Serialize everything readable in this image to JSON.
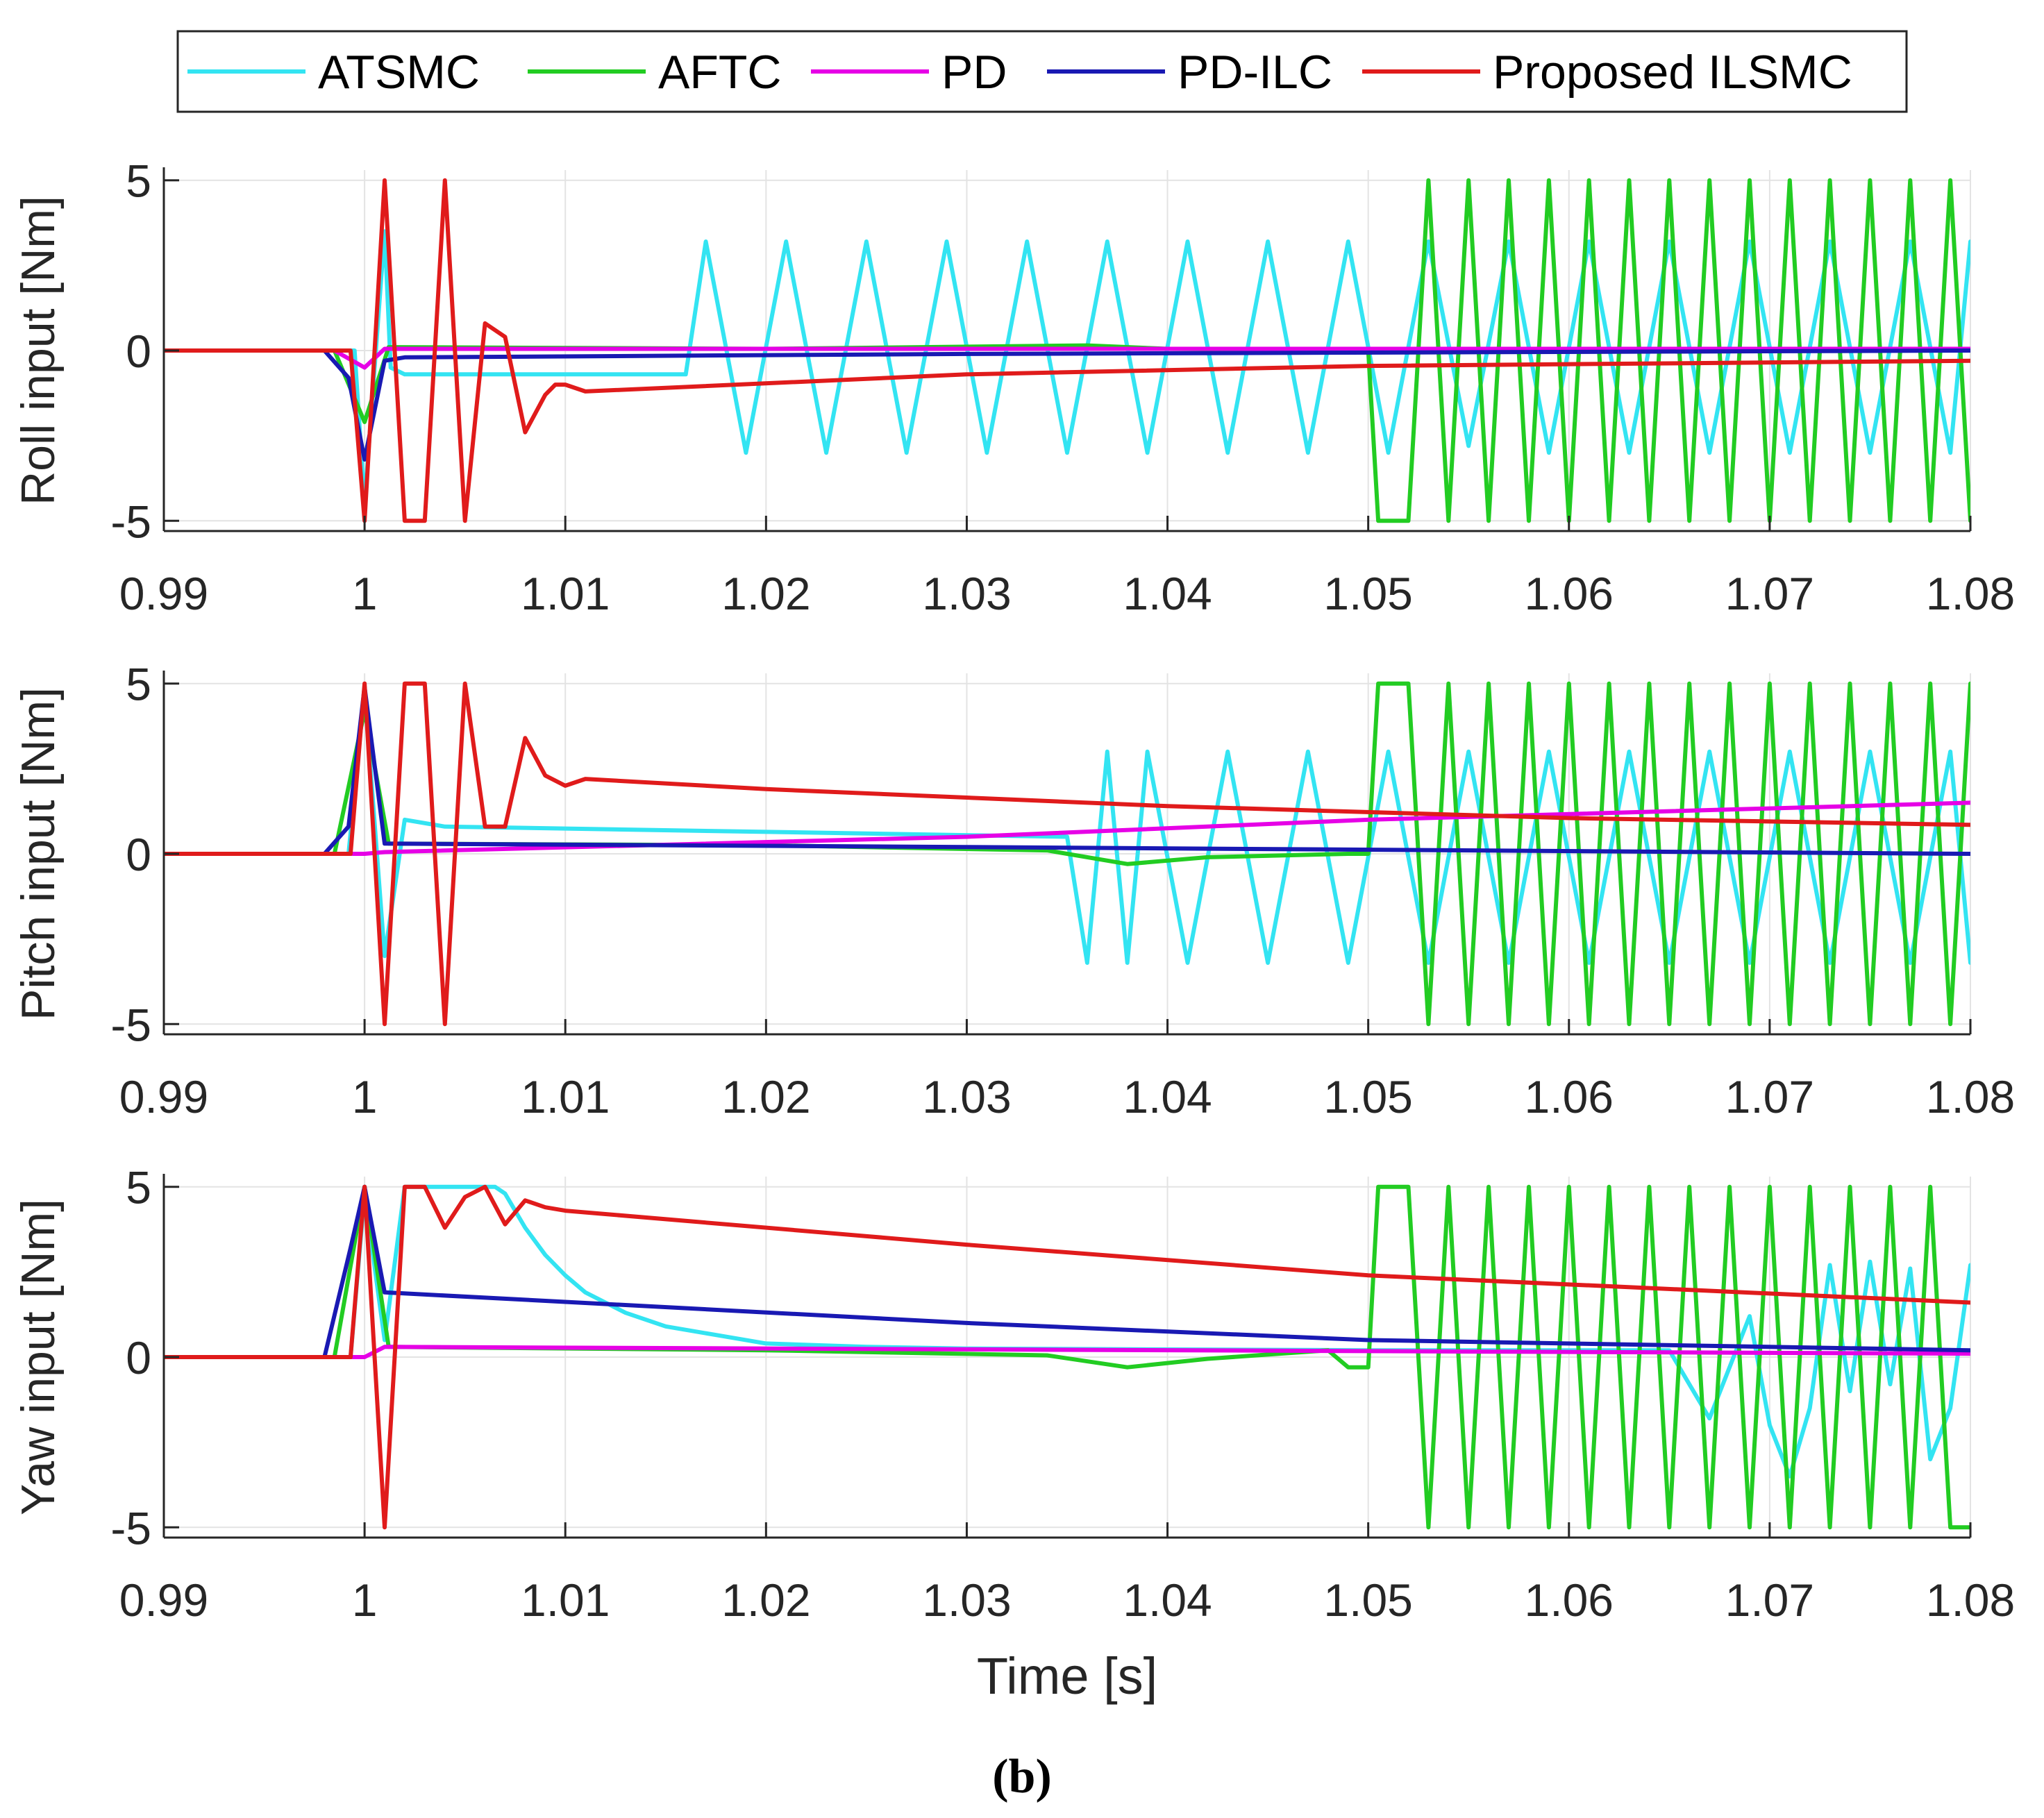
{
  "caption": "(b)",
  "legend": [
    {
      "name": "ATSMC",
      "color": "#33e4f2"
    },
    {
      "name": "AFTC",
      "color": "#22cc22"
    },
    {
      "name": "PD",
      "color": "#e600e6"
    },
    {
      "name": "PD-ILC",
      "color": "#1919b3"
    },
    {
      "name": "Proposed ILSMC",
      "color": "#e01b1b"
    }
  ],
  "chart_data": [
    {
      "type": "line",
      "title": "",
      "xlabel": "",
      "ylabel": "Roll input [Nm]",
      "xlim": [
        0.99,
        1.08
      ],
      "ylim": [
        -5.3,
        5.3
      ],
      "xticks": [
        0.99,
        1,
        1.01,
        1.02,
        1.03,
        1.04,
        1.05,
        1.06,
        1.07,
        1.08
      ],
      "xtick_labels": [
        "0.99",
        "1",
        "1.01",
        "1.02",
        "1.03",
        "1.04",
        "1.05",
        "1.06",
        "1.07",
        "1.08"
      ],
      "yticks": [
        5,
        0,
        -5
      ],
      "ytick_labels": [
        "5",
        "0",
        "-5"
      ],
      "grid": true,
      "series": [
        {
          "name": "ATSMC",
          "x": [
            0.99,
            0.9995,
            1.0,
            1.001,
            1.0013,
            1.002,
            1.016,
            1.017,
            1.019,
            1.021,
            1.023,
            1.025,
            1.027,
            1.029,
            1.031,
            1.033,
            1.035,
            1.037,
            1.039,
            1.041,
            1.043,
            1.045,
            1.047,
            1.049,
            1.051,
            1.053,
            1.055,
            1.057,
            1.059,
            1.061,
            1.063,
            1.065,
            1.067,
            1.069,
            1.071,
            1.073,
            1.075,
            1.077,
            1.079,
            1.08
          ],
          "y": [
            0,
            0,
            -4.5,
            3.5,
            -0.5,
            -0.7,
            -0.7,
            3.2,
            -3.0,
            3.2,
            -3.0,
            3.2,
            -3.0,
            3.2,
            -3.0,
            3.2,
            -3.0,
            3.2,
            -3.0,
            3.2,
            -3.0,
            3.2,
            -3.0,
            3.2,
            -3.0,
            3.2,
            -2.8,
            3.2,
            -3.0,
            3.2,
            -3.0,
            3.2,
            -3.0,
            3.2,
            -3.0,
            3.2,
            -3.0,
            3.2,
            -3.0,
            3.2
          ]
        },
        {
          "name": "AFTC",
          "x": [
            0.99,
            0.9985,
            1.0,
            1.0012,
            1.02,
            1.036,
            1.04,
            1.05,
            1.0505,
            1.052,
            1.053,
            1.054,
            1.055,
            1.056,
            1.057,
            1.058,
            1.059,
            1.06,
            1.061,
            1.062,
            1.063,
            1.064,
            1.065,
            1.066,
            1.067,
            1.068,
            1.069,
            1.07,
            1.071,
            1.072,
            1.073,
            1.074,
            1.075,
            1.076,
            1.077,
            1.078,
            1.079,
            1.08
          ],
          "y": [
            0,
            0,
            -2.1,
            0.1,
            0.05,
            0.15,
            0.05,
            0,
            -5,
            -5,
            5,
            -5,
            5,
            -5,
            5,
            -5,
            5,
            -5,
            5,
            -5,
            5,
            -5,
            5,
            -5,
            5,
            -5,
            5,
            -5,
            5,
            -5,
            5,
            -5,
            5,
            -5,
            5,
            -5,
            5,
            -5
          ]
        },
        {
          "name": "PD",
          "x": [
            0.99,
            0.9985,
            1.0,
            1.001,
            1.08
          ],
          "y": [
            0,
            0,
            -0.5,
            0.05,
            0.05
          ]
        },
        {
          "name": "PD-ILC",
          "x": [
            0.99,
            0.998,
            0.9992,
            1.0,
            1.001,
            1.002,
            1.03,
            1.08
          ],
          "y": [
            0,
            0,
            -0.8,
            -3.2,
            -0.3,
            -0.2,
            -0.1,
            0
          ]
        },
        {
          "name": "Proposed ILSMC",
          "x": [
            0.99,
            0.9993,
            1.0,
            1.001,
            1.002,
            1.003,
            1.004,
            1.005,
            1.006,
            1.007,
            1.008,
            1.009,
            1.0095,
            1.01,
            1.011,
            1.03,
            1.05,
            1.08
          ],
          "y": [
            0,
            0,
            -5,
            5,
            -5,
            -5,
            5,
            -5,
            0.8,
            0.4,
            -2.4,
            -1.3,
            -1.0,
            -1.0,
            -1.2,
            -0.7,
            -0.45,
            -0.3
          ]
        }
      ]
    },
    {
      "type": "line",
      "title": "",
      "xlabel": "",
      "ylabel": "Pitch input [Nm]",
      "xlim": [
        0.99,
        1.08
      ],
      "ylim": [
        -5.3,
        5.3
      ],
      "xticks": [
        0.99,
        1,
        1.01,
        1.02,
        1.03,
        1.04,
        1.05,
        1.06,
        1.07,
        1.08
      ],
      "xtick_labels": [
        "0.99",
        "1",
        "1.01",
        "1.02",
        "1.03",
        "1.04",
        "1.05",
        "1.06",
        "1.07",
        "1.08"
      ],
      "yticks": [
        5,
        0,
        -5
      ],
      "ytick_labels": [
        "5",
        "0",
        "-5"
      ],
      "grid": true,
      "series": [
        {
          "name": "ATSMC",
          "x": [
            0.99,
            0.9992,
            1.0,
            1.001,
            1.002,
            1.004,
            1.035,
            1.036,
            1.037,
            1.038,
            1.039,
            1.041,
            1.043,
            1.045,
            1.047,
            1.049,
            1.051,
            1.053,
            1.055,
            1.057,
            1.059,
            1.061,
            1.063,
            1.065,
            1.067,
            1.069,
            1.071,
            1.073,
            1.075,
            1.077,
            1.079,
            1.08
          ],
          "y": [
            0,
            0,
            4.8,
            -3.0,
            1.0,
            0.8,
            0.5,
            -3.2,
            3.0,
            -3.2,
            3.0,
            -3.2,
            3.0,
            -3.2,
            3.0,
            -3.2,
            3.0,
            -3.2,
            3.0,
            -3.2,
            3.0,
            -3.2,
            3.0,
            -3.2,
            3.0,
            -3.2,
            3.0,
            -3.2,
            3.0,
            -3.2,
            3.0,
            -3.2
          ]
        },
        {
          "name": "AFTC",
          "x": [
            0.99,
            0.9985,
            1.0,
            1.0012,
            1.02,
            1.034,
            1.038,
            1.042,
            1.049,
            1.05,
            1.0505,
            1.052,
            1.053,
            1.054,
            1.055,
            1.056,
            1.057,
            1.058,
            1.059,
            1.06,
            1.061,
            1.062,
            1.063,
            1.064,
            1.065,
            1.066,
            1.067,
            1.068,
            1.069,
            1.07,
            1.071,
            1.072,
            1.073,
            1.074,
            1.075,
            1.076,
            1.077,
            1.078,
            1.079,
            1.08
          ],
          "y": [
            0,
            0,
            4.2,
            0.3,
            0.25,
            0.1,
            -0.3,
            -0.1,
            0,
            0,
            5,
            5,
            -5,
            5,
            -5,
            5,
            -5,
            5,
            -5,
            5,
            -5,
            5,
            -5,
            5,
            -5,
            5,
            -5,
            5,
            -5,
            5,
            -5,
            5,
            -5,
            5,
            -5,
            5,
            -5,
            5,
            -5,
            5
          ]
        },
        {
          "name": "PD",
          "x": [
            0.99,
            1.0,
            1.001,
            1.03,
            1.05,
            1.08
          ],
          "y": [
            0,
            0,
            0.05,
            0.5,
            1.0,
            1.5
          ]
        },
        {
          "name": "PD-ILC",
          "x": [
            0.99,
            0.998,
            0.9992,
            1.0,
            1.001,
            1.03,
            1.08
          ],
          "y": [
            0,
            0,
            0.8,
            4.9,
            0.3,
            0.2,
            0
          ]
        },
        {
          "name": "Proposed ILSMC",
          "x": [
            0.99,
            0.9993,
            1.0,
            1.001,
            1.002,
            1.003,
            1.004,
            1.005,
            1.006,
            1.007,
            1.008,
            1.009,
            1.01,
            1.011,
            1.02,
            1.04,
            1.06,
            1.08
          ],
          "y": [
            0,
            0,
            5,
            -5,
            5,
            5,
            -5,
            5,
            0.8,
            0.8,
            3.4,
            2.3,
            2.0,
            2.2,
            1.9,
            1.4,
            1.05,
            0.85
          ]
        }
      ]
    },
    {
      "type": "line",
      "title": "",
      "xlabel": "Time [s]",
      "ylabel": "Yaw input [Nm]",
      "xlim": [
        0.99,
        1.08
      ],
      "ylim": [
        -5.3,
        5.3
      ],
      "xticks": [
        0.99,
        1,
        1.01,
        1.02,
        1.03,
        1.04,
        1.05,
        1.06,
        1.07,
        1.08
      ],
      "xtick_labels": [
        "0.99",
        "1",
        "1.01",
        "1.02",
        "1.03",
        "1.04",
        "1.05",
        "1.06",
        "1.07",
        "1.08"
      ],
      "yticks": [
        5,
        0,
        -5
      ],
      "ytick_labels": [
        "5",
        "0",
        "-5"
      ],
      "grid": true,
      "series": [
        {
          "name": "ATSMC",
          "x": [
            0.99,
            0.9993,
            1.0,
            1.001,
            1.002,
            1.0065,
            1.007,
            1.008,
            1.009,
            1.01,
            1.011,
            1.013,
            1.015,
            1.018,
            1.02,
            1.025,
            1.03,
            1.05,
            1.065,
            1.067,
            1.069,
            1.07,
            1.071,
            1.072,
            1.073,
            1.074,
            1.075,
            1.076,
            1.077,
            1.078,
            1.079,
            1.08
          ],
          "y": [
            0,
            0,
            4.8,
            0.5,
            5,
            5,
            4.8,
            3.8,
            3.0,
            2.4,
            1.9,
            1.3,
            0.9,
            0.6,
            0.4,
            0.3,
            0.25,
            0.2,
            0.2,
            -1.8,
            1.2,
            -2.0,
            -3.5,
            -1.5,
            2.7,
            -1.0,
            2.8,
            -0.8,
            2.6,
            -3.0,
            -1.5,
            2.7
          ]
        },
        {
          "name": "AFTC",
          "x": [
            0.99,
            0.9985,
            1.0,
            1.0012,
            1.02,
            1.034,
            1.038,
            1.042,
            1.048,
            1.049,
            1.05,
            1.0505,
            1.052,
            1.053,
            1.054,
            1.055,
            1.056,
            1.057,
            1.058,
            1.059,
            1.06,
            1.061,
            1.062,
            1.063,
            1.064,
            1.065,
            1.066,
            1.067,
            1.068,
            1.069,
            1.07,
            1.071,
            1.072,
            1.073,
            1.074,
            1.075,
            1.076,
            1.077,
            1.078,
            1.079,
            1.08
          ],
          "y": [
            0,
            0,
            5,
            0.3,
            0.2,
            0.05,
            -0.3,
            -0.05,
            0.2,
            -0.3,
            -0.3,
            5,
            5,
            -5,
            5,
            -5,
            5,
            -5,
            5,
            -5,
            5,
            -5,
            5,
            -5,
            5,
            -5,
            5,
            -5,
            5,
            -5,
            5,
            -5,
            5,
            -5,
            5,
            -5,
            5,
            -5,
            5,
            -5,
            -5
          ]
        },
        {
          "name": "PD",
          "x": [
            0.99,
            1.0,
            1.001,
            1.08
          ],
          "y": [
            0,
            0,
            0.3,
            0.1
          ]
        },
        {
          "name": "PD-ILC",
          "x": [
            0.99,
            0.998,
            0.9993,
            1.0,
            1.001,
            1.03,
            1.05,
            1.08
          ],
          "y": [
            0,
            0,
            3.2,
            5,
            1.9,
            1.0,
            0.5,
            0.2
          ]
        },
        {
          "name": "Proposed ILSMC",
          "x": [
            0.99,
            0.9993,
            1.0,
            1.001,
            1.002,
            1.003,
            1.004,
            1.005,
            1.006,
            1.007,
            1.008,
            1.009,
            1.01,
            1.012,
            1.03,
            1.05,
            1.08
          ],
          "y": [
            0,
            0,
            5,
            -5,
            5,
            5,
            3.8,
            4.7,
            5.0,
            3.9,
            4.6,
            4.4,
            4.3,
            4.2,
            3.3,
            2.4,
            1.6
          ]
        }
      ]
    }
  ]
}
